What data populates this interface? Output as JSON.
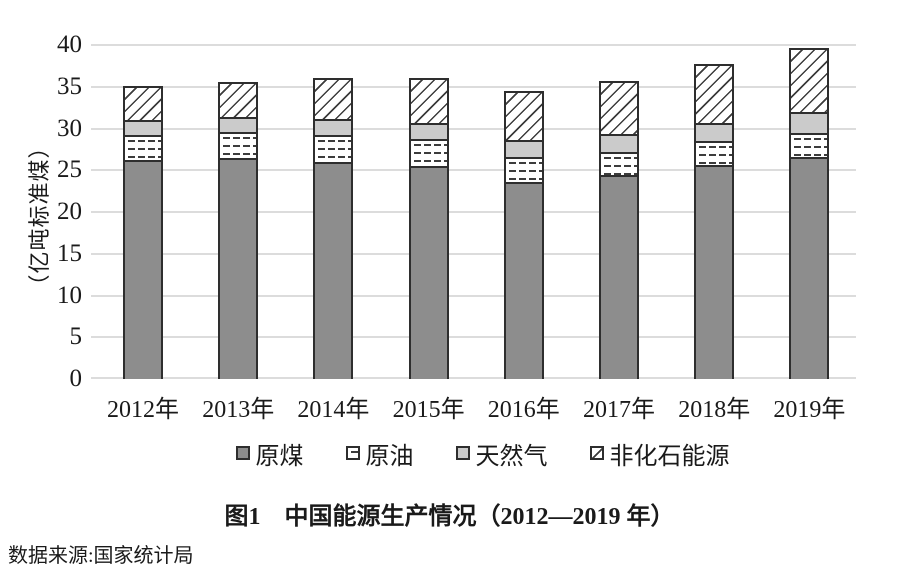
{
  "figure": {
    "caption": "图1　中国能源生产情况（2012—2019 年）",
    "source": "数据来源:国家统计局"
  },
  "chart_data": {
    "type": "bar",
    "stacked": true,
    "title": "图1　中国能源生产情况（2012—2019 年）",
    "categories": [
      "2012年",
      "2013年",
      "2014年",
      "2015年",
      "2016年",
      "2017年",
      "2018年",
      "2019年"
    ],
    "series": [
      {
        "name": "原煤",
        "key": "coal",
        "values": [
          26.7,
          26.9,
          26.5,
          26.0,
          24.0,
          24.8,
          26.0,
          27.0
        ]
      },
      {
        "name": "原油",
        "key": "oil",
        "values": [
          2.9,
          3.0,
          3.0,
          3.0,
          2.9,
          2.7,
          2.7,
          2.7
        ]
      },
      {
        "name": "天然气",
        "key": "gas",
        "values": [
          1.5,
          1.6,
          1.7,
          1.8,
          1.8,
          1.9,
          2.0,
          2.3
        ]
      },
      {
        "name": "非化石能源",
        "key": "nonfossil",
        "values": [
          4.0,
          4.1,
          4.9,
          5.3,
          5.8,
          6.3,
          7.0,
          7.7
        ]
      }
    ],
    "totals": [
      35.1,
      35.6,
      36.1,
      36.1,
      34.5,
      35.7,
      37.7,
      39.7
    ],
    "ylabel": "（亿吨标准煤）",
    "ylim": [
      0,
      40
    ],
    "yticks": [
      0,
      5,
      10,
      15,
      20,
      25,
      30,
      35,
      40
    ],
    "grid": true,
    "legend_position": "bottom"
  },
  "colors": {
    "background": "#ffffff",
    "text": "#1a1a1a",
    "coal": "#8d8d8d",
    "gas": "#cbcbcb",
    "pattern_line": "#3c3c3c",
    "segment_border": "#2e2e2e",
    "gridline": "#dcdcdc"
  }
}
